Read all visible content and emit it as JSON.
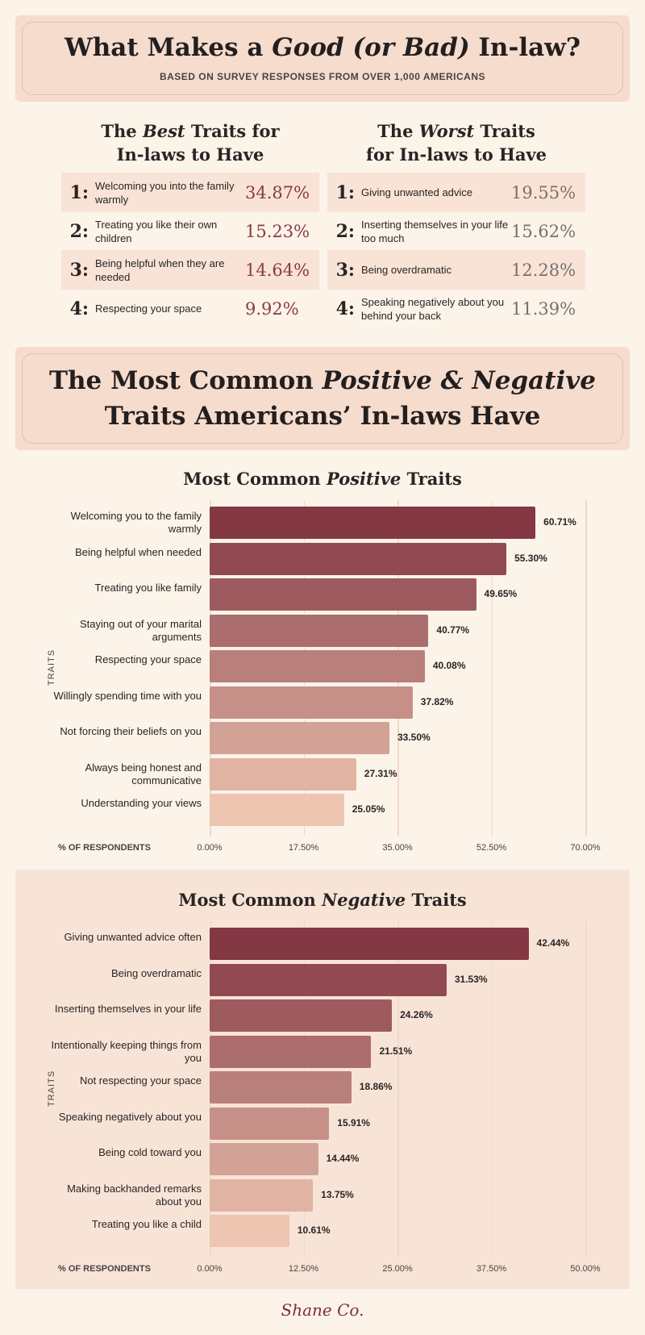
{
  "header": {
    "title_a": "What Makes a ",
    "title_b": "Good (or Bad)",
    "title_c": " In-law?",
    "subtitle": "BASED ON SURVEY RESPONSES FROM OVER 1,000 AMERICANS"
  },
  "best": {
    "h1": "The ",
    "h2": "Best",
    "h3": " Traits for",
    "h4": "In-laws to Have",
    "items": [
      {
        "rank": "1:",
        "text": "Welcoming you into the family warmly",
        "pct": "34.87%"
      },
      {
        "rank": "2:",
        "text": "Treating you like their own children",
        "pct": "15.23%"
      },
      {
        "rank": "3:",
        "text": "Being helpful when they are needed",
        "pct": "14.64%"
      },
      {
        "rank": "4:",
        "text": "Respecting your space",
        "pct": "9.92%"
      }
    ]
  },
  "worst": {
    "h1": "The ",
    "h2": "Worst",
    "h3": " Traits",
    "h4": "for In-laws to Have",
    "items": [
      {
        "rank": "1:",
        "text": "Giving unwanted advice",
        "pct": "19.55%"
      },
      {
        "rank": "2:",
        "text": "Inserting themselves in your life too much",
        "pct": "15.62%"
      },
      {
        "rank": "3:",
        "text": "Being overdramatic",
        "pct": "12.28%"
      },
      {
        "rank": "4:",
        "text": "Speaking negatively about you behind your back",
        "pct": "11.39%"
      }
    ]
  },
  "banner2": {
    "l1a": "The Most Common ",
    "l1b": "Positive & Negative",
    "l2": "Traits Americans’ In-laws Have"
  },
  "colors": {
    "best_pct": "#8a3a45",
    "worst_pct": "#777070",
    "bar_dark": "#843844",
    "bar_light": "#edc5b1"
  },
  "logo": "Shane Co.",
  "chart_data": [
    {
      "type": "bar",
      "title_a": "Most Common ",
      "title_b": "Positive",
      "title_c": " Traits",
      "xlabel": "% OF RESPONDENTS",
      "ylabel": "TRAITS",
      "xlim": [
        0,
        70
      ],
      "ticks": [
        "0.00%",
        "17.50%",
        "35.00%",
        "52.50%",
        "70.00%"
      ],
      "categories": [
        "Welcoming you to the family warmly",
        "Being helpful when needed",
        "Treating you like family",
        "Staying out of your marital arguments",
        "Respecting your space",
        "Willingly spending time with you",
        "Not forcing their beliefs on you",
        "Always being honest and communicative",
        "Understanding your views"
      ],
      "values": [
        60.71,
        55.3,
        49.65,
        40.77,
        40.08,
        37.82,
        33.5,
        27.31,
        25.05
      ],
      "labels": [
        "60.71%",
        "55.30%",
        "49.65%",
        "40.77%",
        "40.08%",
        "37.82%",
        "33.50%",
        "27.31%",
        "25.05%"
      ]
    },
    {
      "type": "bar",
      "title_a": "Most Common ",
      "title_b": "Negative",
      "title_c": " Traits",
      "xlabel": "% OF RESPONDENTS",
      "ylabel": "TRAITS",
      "xlim": [
        0,
        50
      ],
      "ticks": [
        "0.00%",
        "12.50%",
        "25.00%",
        "37.50%",
        "50.00%"
      ],
      "categories": [
        "Giving unwanted advice often",
        "Being overdramatic",
        "Inserting themselves in your life",
        "Intentionally keeping things from you",
        "Not respecting your space",
        "Speaking negatively about you",
        "Being cold toward you",
        "Making backhanded remarks about you",
        "Treating you like a child"
      ],
      "values": [
        42.44,
        31.53,
        24.26,
        21.51,
        18.86,
        15.91,
        14.44,
        13.75,
        10.61
      ],
      "labels": [
        "42.44%",
        "31.53%",
        "24.26%",
        "21.51%",
        "18.86%",
        "15.91%",
        "14.44%",
        "13.75%",
        "10.61%"
      ]
    }
  ]
}
